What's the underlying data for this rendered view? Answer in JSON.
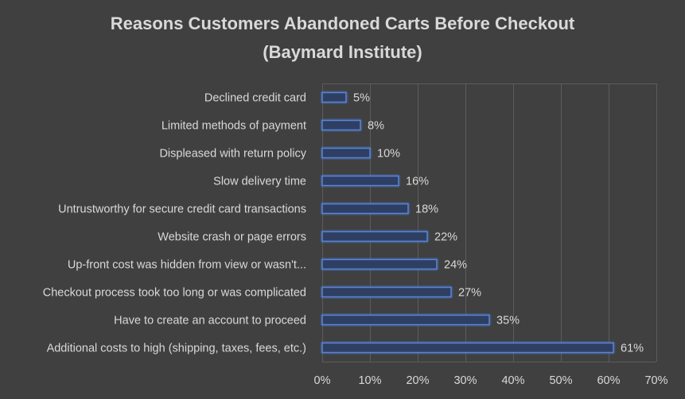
{
  "chart_data": {
    "type": "bar",
    "orientation": "horizontal",
    "title_lines": [
      "Reasons Customers Abandoned Carts Before Checkout",
      "(Baymard Institute)"
    ],
    "categories": [
      "Declined credit card",
      "Limited methods of payment",
      "Displeased with return policy",
      "Slow delivery time",
      "Untrustworthy for secure credit card transactions",
      "Website crash or page errors",
      "Up-front cost was hidden from view or wasn't...",
      "Checkout process took too long or was complicated",
      "Have to create an account to proceed",
      "Additional costs to high (shipping, taxes, fees, etc.)"
    ],
    "values": [
      5,
      8,
      10,
      16,
      18,
      22,
      24,
      27,
      35,
      61
    ],
    "value_labels": [
      "5%",
      "8%",
      "10%",
      "16%",
      "18%",
      "22%",
      "24%",
      "27%",
      "35%",
      "61%"
    ],
    "xlim": [
      0,
      70
    ],
    "xticks": [
      0,
      10,
      20,
      30,
      40,
      50,
      60,
      70
    ],
    "xtick_labels": [
      "0%",
      "10%",
      "20%",
      "30%",
      "40%",
      "50%",
      "60%",
      "70%"
    ],
    "grid": true,
    "colors": {
      "background": "#404040",
      "bar_outline": "#5b86d6",
      "bar_fill": "#2f3f63",
      "text": "#d9d9d9",
      "grid": "#5c5c5c"
    }
  }
}
